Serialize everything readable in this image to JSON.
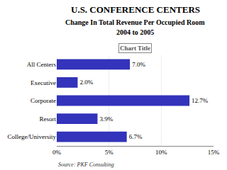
{
  "chart_data": {
    "type": "bar",
    "orientation": "horizontal",
    "title": "U.S. CONFERENCE CENTERS",
    "subtitle": [
      "Change In Total Revenue Per Occupied Room",
      "2004 to 2005"
    ],
    "annotations": [
      "Chart Title",
      "Source: PKF Consulting"
    ],
    "categories": [
      "All Centers",
      "Executive",
      "Corporate",
      "Resort",
      "College/University"
    ],
    "values": [
      7.0,
      2.0,
      12.7,
      3.9,
      6.7
    ],
    "value_labels": [
      "7.0%",
      "2.0%",
      "12.7%",
      "3.9%",
      "6.7%"
    ],
    "data_labels": true,
    "color": "#3333bb",
    "xlim": [
      0,
      15
    ],
    "xticks": [
      {
        "value": 0,
        "label": "0%"
      },
      {
        "value": 5,
        "label": "5%"
      },
      {
        "value": 10,
        "label": "10%"
      },
      {
        "value": 15,
        "label": "15%"
      }
    ],
    "grid": true
  }
}
